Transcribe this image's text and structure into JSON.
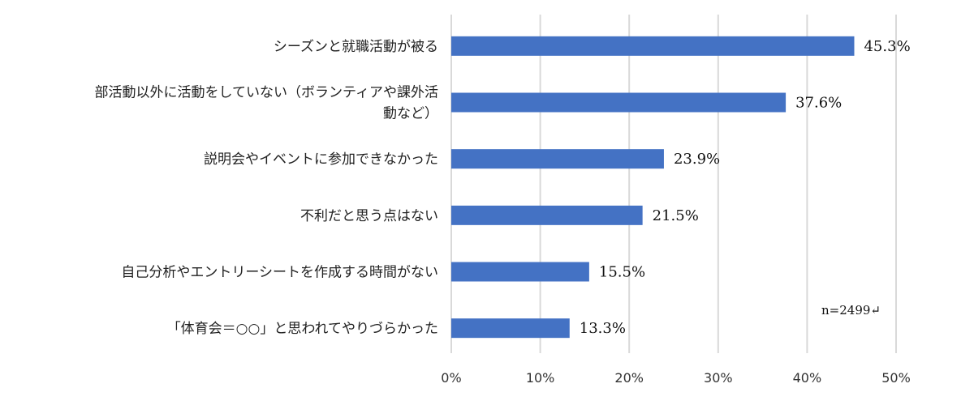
{
  "chart_data": {
    "type": "bar",
    "orientation": "horizontal",
    "categories": [
      [
        "シーズンと就職活動が被る"
      ],
      [
        "部活動以外に活動をしていない（ボランティアや課外活",
        "動など）"
      ],
      [
        "説明会やイベントに参加できなかった"
      ],
      [
        "不利だと思う点はない"
      ],
      [
        "自己分析やエントリーシートを作成する時間がない"
      ],
      [
        "「体育会＝○○」と思われてやりづらかった"
      ]
    ],
    "values": [
      45.3,
      37.6,
      23.9,
      21.5,
      15.5,
      13.3
    ],
    "value_labels": [
      "45.3%",
      "37.6%",
      "23.9%",
      "21.5%",
      "15.5%",
      "13.3%"
    ],
    "xticks": [
      "0%",
      "10%",
      "20%",
      "30%",
      "40%",
      "50%"
    ],
    "xlim": [
      0,
      50
    ],
    "grid": true,
    "annotation": "n=2499↵",
    "colors": {
      "bar": "#4472C4",
      "grid": "#D9D9D9"
    }
  }
}
